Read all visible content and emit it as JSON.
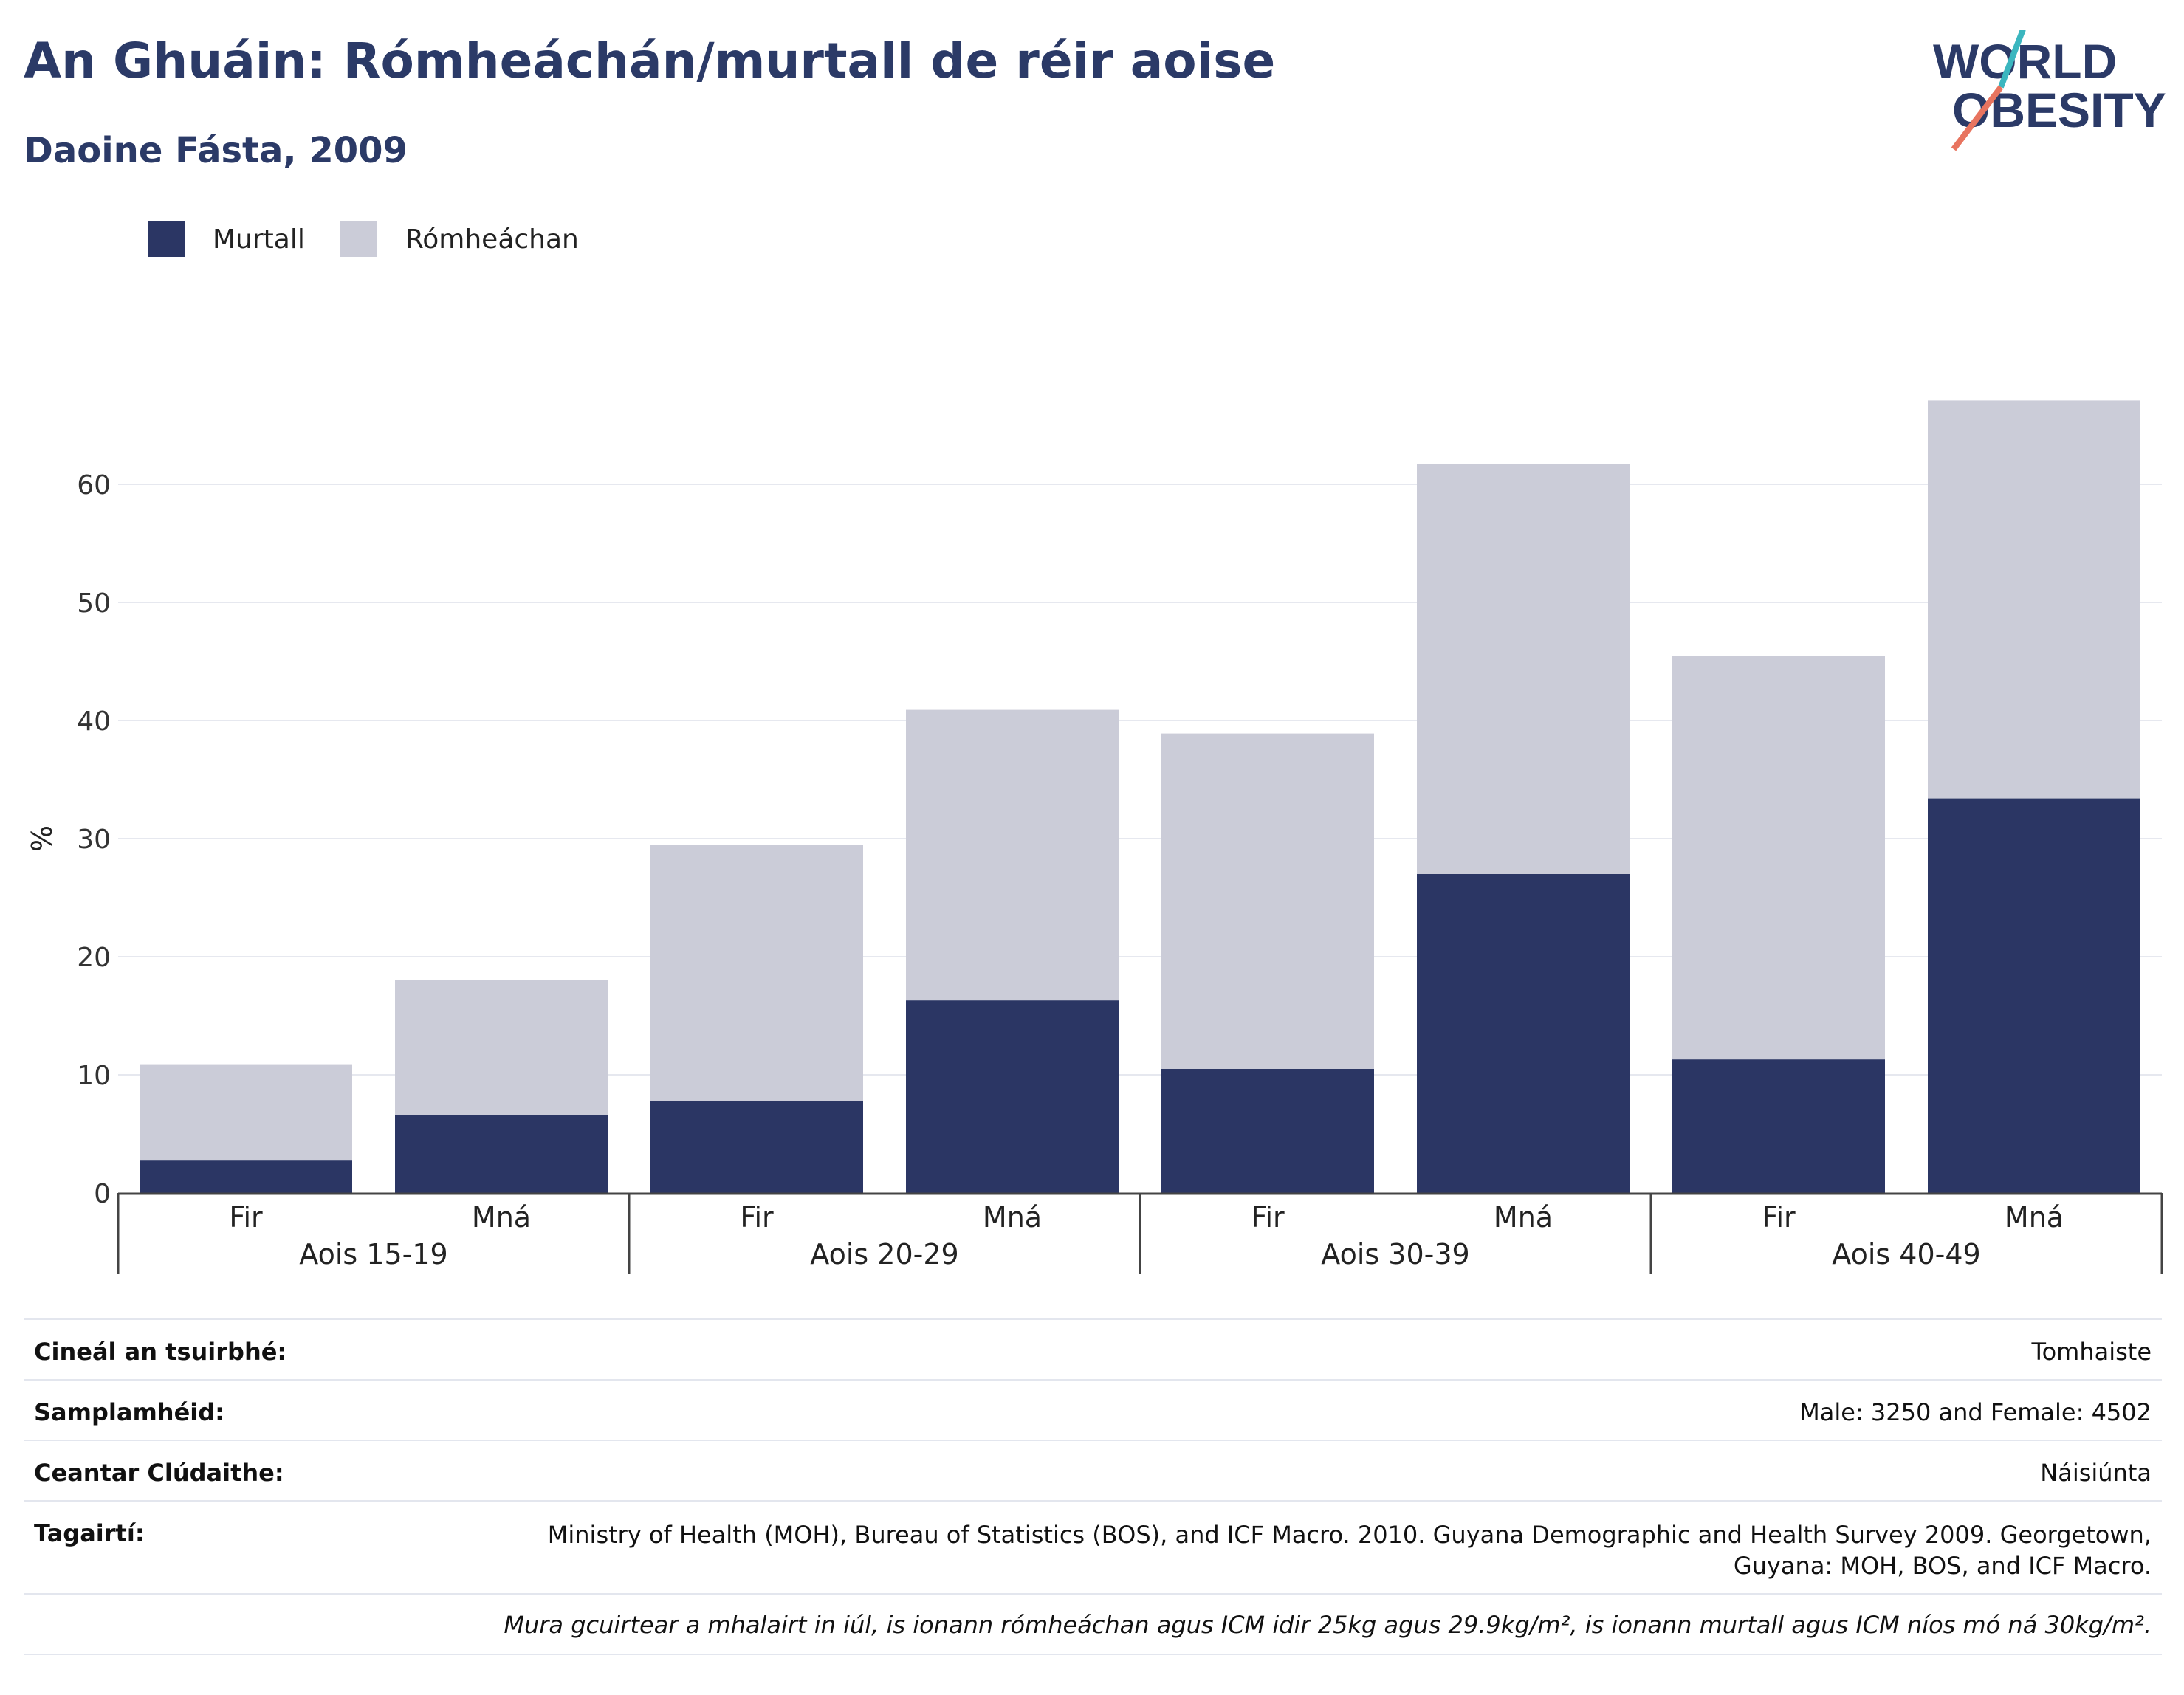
{
  "title": "An Ghuáin: Rómheáchán/murtall de réir aoise",
  "subtitle": "Daoine Fásta, 2009",
  "logo": {
    "line1": "WORLD",
    "line2": "OBESITY"
  },
  "colors": {
    "obesity": "#2b3664",
    "overweight": "#cbccd8",
    "title": "#2b3a67",
    "logo_teal": "#3bb6bf",
    "logo_coral": "#e8745f"
  },
  "legend": [
    {
      "label": "Murtall",
      "color": "#2b3664"
    },
    {
      "label": "Rómheáchan",
      "color": "#cbccd8"
    }
  ],
  "chart_data": {
    "type": "bar",
    "stacked": true,
    "ylabel": "%",
    "ylim": [
      0,
      70
    ],
    "yticks": [
      0,
      10,
      20,
      30,
      40,
      50,
      60
    ],
    "grid": true,
    "legend_position": "top-left",
    "groups": [
      "Aois 15-19",
      "Aois 20-29",
      "Aois 30-39",
      "Aois 40-49"
    ],
    "categories": [
      "Fir",
      "Mná",
      "Fir",
      "Mná",
      "Fir",
      "Mná",
      "Fir",
      "Mná"
    ],
    "series": [
      {
        "name": "Murtall",
        "values": [
          2.8,
          6.6,
          7.8,
          16.3,
          10.5,
          27.0,
          11.3,
          33.4
        ]
      },
      {
        "name": "Rómheáchan",
        "values": [
          8.1,
          11.4,
          21.7,
          24.6,
          28.4,
          34.7,
          34.2,
          33.7
        ]
      }
    ]
  },
  "footer": {
    "survey_type_label": "Cineál an tsuirbhé:",
    "survey_type_value": "Tomhaiste",
    "sample_label": "Samplamhéid:",
    "sample_value": "Male: 3250 and Female: 4502",
    "coverage_label": "Ceantar Clúdaithe:",
    "coverage_value": "Náisiúnta",
    "refs_label": "Tagairtí:",
    "refs_value": "Ministry of Health (MOH), Bureau of Statistics (BOS), and ICF Macro. 2010. Guyana Demographic and Health Survey 2009. Georgetown, Guyana: MOH, BOS, and ICF Macro.",
    "note": "Mura gcuirtear a mhalairt in iúl, is ionann rómheáchan agus ICM idir 25kg agus 29.9kg/m², is ionann murtall agus ICM níos mó ná 30kg/m²."
  }
}
